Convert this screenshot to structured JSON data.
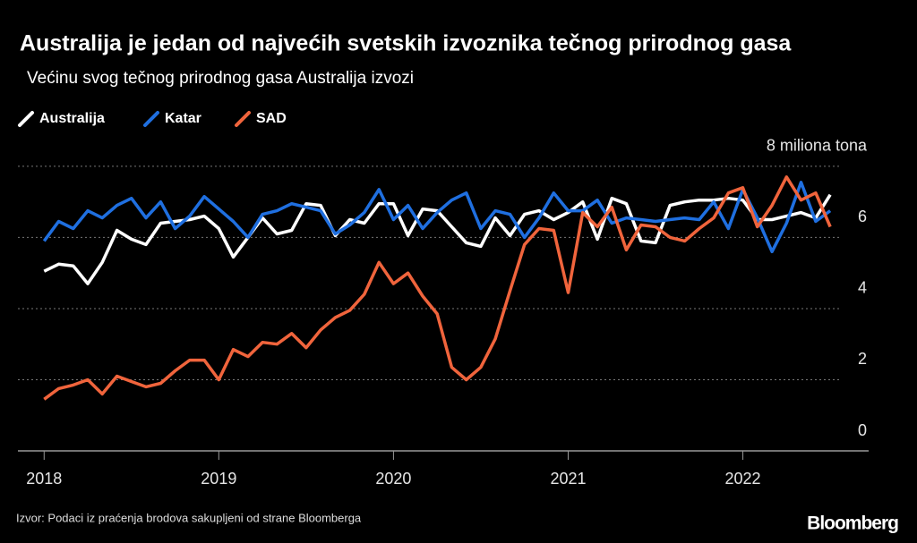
{
  "chart_data": {
    "type": "line",
    "title": "Australija je jedan od najvećih svetskih izvoznika tečnog prirodnog gasa",
    "subtitle": "Većinu svog tečnog prirodnog gasa Australija izvozi",
    "source": "Izvor: Podaci iz praćenja brodova sakupljeni od strane Bloomberga",
    "brand": "Bloomberg",
    "x": [
      2018,
      2018.083,
      2018.167,
      2018.25,
      2018.333,
      2018.417,
      2018.5,
      2018.583,
      2018.667,
      2018.75,
      2018.833,
      2018.917,
      2019,
      2019.083,
      2019.167,
      2019.25,
      2019.333,
      2019.417,
      2019.5,
      2019.583,
      2019.667,
      2019.75,
      2019.833,
      2019.917,
      2020,
      2020.083,
      2020.167,
      2020.25,
      2020.333,
      2020.417,
      2020.5,
      2020.583,
      2020.667,
      2020.75,
      2020.833,
      2020.917,
      2021,
      2021.083,
      2021.167,
      2021.25,
      2021.333,
      2021.417,
      2021.5,
      2021.583,
      2021.667,
      2021.75,
      2021.833,
      2021.917,
      2022,
      2022.083,
      2022.167,
      2022.25,
      2022.333,
      2022.417,
      2022.5
    ],
    "series": [
      {
        "name": "Australija",
        "color": "#ffffff",
        "values": [
          5.05,
          5.25,
          5.2,
          4.7,
          5.3,
          6.2,
          5.95,
          5.8,
          6.4,
          6.45,
          6.5,
          6.6,
          6.25,
          5.45,
          6.0,
          6.55,
          6.1,
          6.2,
          6.95,
          6.9,
          6.05,
          6.5,
          6.4,
          6.95,
          6.95,
          6.05,
          6.8,
          6.75,
          6.3,
          5.85,
          5.75,
          6.55,
          6.05,
          6.65,
          6.75,
          6.5,
          6.7,
          7.0,
          5.95,
          7.1,
          6.95,
          5.9,
          5.85,
          6.9,
          7.0,
          7.05,
          7.05,
          7.1,
          7.05,
          6.5,
          6.5,
          6.6,
          6.7,
          6.55,
          7.2
        ]
      },
      {
        "name": "Katar",
        "color": "#1f6fe0",
        "values": [
          5.9,
          6.45,
          6.25,
          6.75,
          6.55,
          6.9,
          7.1,
          6.55,
          7.0,
          6.25,
          6.6,
          7.15,
          6.8,
          6.45,
          6.0,
          6.65,
          6.75,
          6.95,
          6.85,
          6.75,
          6.1,
          6.35,
          6.7,
          7.35,
          6.5,
          6.9,
          6.25,
          6.7,
          7.05,
          7.25,
          6.25,
          6.75,
          6.65,
          6.0,
          6.55,
          7.25,
          6.75,
          6.75,
          7.05,
          6.4,
          6.55,
          6.5,
          6.45,
          6.5,
          6.55,
          6.5,
          7.0,
          6.25,
          7.35,
          6.55,
          5.6,
          6.4,
          7.55,
          6.45,
          6.75
        ]
      },
      {
        "name": "SAD",
        "color": "#f0643c",
        "values": [
          1.45,
          1.75,
          1.85,
          2.0,
          1.6,
          2.1,
          1.95,
          1.8,
          1.9,
          2.25,
          2.55,
          2.55,
          2.0,
          2.85,
          2.65,
          3.05,
          3.0,
          3.3,
          2.9,
          3.4,
          3.75,
          3.95,
          4.4,
          5.3,
          4.7,
          5.0,
          4.35,
          3.85,
          2.35,
          2.0,
          2.35,
          3.15,
          4.5,
          5.8,
          6.25,
          6.2,
          4.45,
          6.7,
          6.3,
          6.85,
          5.65,
          6.35,
          6.3,
          6.0,
          5.9,
          6.25,
          6.55,
          7.25,
          7.4,
          6.3,
          6.9,
          7.7,
          7.05,
          7.25,
          6.3
        ]
      }
    ],
    "xlim": [
      2017.85,
      2022.72
    ],
    "xticks": [
      2018,
      2019,
      2020,
      2021,
      2022
    ],
    "ylim": [
      0,
      8.4
    ],
    "yticks": [
      0,
      2,
      4,
      6,
      {
        "value": 8,
        "label": "8 miliona tona"
      }
    ],
    "grid": true,
    "legend": "top-left"
  }
}
